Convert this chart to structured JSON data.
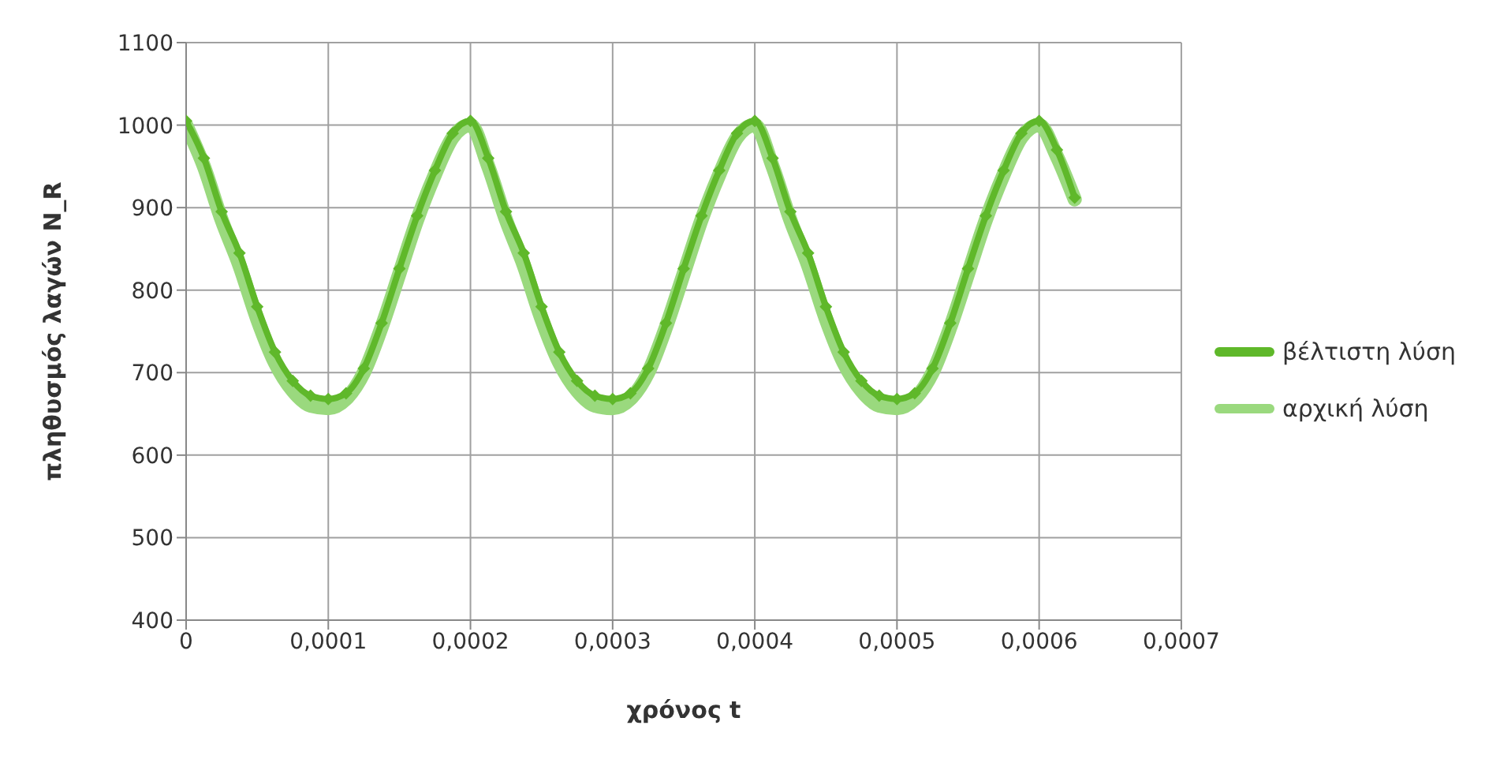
{
  "chart_data": {
    "type": "line",
    "xlabel": "χρόνος t",
    "ylabel": "πληθυσμός λαγών N_R",
    "x": [
      0,
      1.25e-05,
      2.5e-05,
      3.75e-05,
      5e-05,
      6.25e-05,
      7.5e-05,
      8.75e-05,
      0.0001,
      0.0001125,
      0.000125,
      0.0001375,
      0.00015,
      0.0001625,
      0.000175,
      0.0001875,
      0.0002,
      0.0002125,
      0.000225,
      0.0002375,
      0.00025,
      0.0002625,
      0.000275,
      0.0002875,
      0.0003,
      0.0003125,
      0.000325,
      0.0003375,
      0.00035,
      0.0003625,
      0.000375,
      0.0003875,
      0.0004,
      0.0004125,
      0.000425,
      0.0004375,
      0.00045,
      0.0004625,
      0.000475,
      0.0004875,
      0.0005,
      0.0005125,
      0.000525,
      0.0005375,
      0.00055,
      0.0005625,
      0.000575,
      0.0005875,
      0.0006,
      0.0006125,
      0.000625
    ],
    "series": [
      {
        "name": "βέλτιστη λύση",
        "color": "#5fb82a",
        "marker": "diamond",
        "values": [
          1005,
          960,
          895,
          845,
          780,
          725,
          690,
          672,
          668,
          675,
          705,
          760,
          826,
          890,
          945,
          990,
          1005,
          960,
          895,
          845,
          780,
          725,
          690,
          672,
          668,
          675,
          705,
          760,
          826,
          890,
          945,
          990,
          1005,
          960,
          895,
          845,
          780,
          725,
          690,
          672,
          668,
          675,
          705,
          760,
          826,
          890,
          945,
          990,
          1005,
          970,
          912
        ]
      },
      {
        "name": "αρχική λύση",
        "color": "#9ad97e",
        "marker": "none",
        "values": [
          1000,
          950,
          885,
          830,
          765,
          712,
          678,
          660,
          657,
          668,
          700,
          755,
          820,
          885,
          940,
          985,
          1000,
          950,
          885,
          830,
          765,
          712,
          678,
          660,
          657,
          668,
          700,
          755,
          820,
          885,
          940,
          985,
          1000,
          950,
          885,
          830,
          765,
          712,
          678,
          660,
          657,
          668,
          700,
          755,
          820,
          885,
          940,
          985,
          1000,
          962,
          910
        ]
      }
    ],
    "xlim": [
      0,
      0.0007
    ],
    "xticks": [
      0,
      {
        "value": 0.0001,
        "label": "0,0001"
      },
      {
        "value": 0.0002,
        "label": "0,0002"
      },
      {
        "value": 0.0003,
        "label": "0,0003"
      },
      {
        "value": 0.0004,
        "label": "0,0004"
      },
      {
        "value": 0.0005,
        "label": "0,0005"
      },
      {
        "value": 0.0006,
        "label": "0,0006"
      },
      {
        "value": 0.0007,
        "label": "0,0007"
      }
    ],
    "ylim": [
      400,
      1100
    ],
    "yticks": [
      400,
      500,
      600,
      700,
      800,
      900,
      1000,
      1100
    ],
    "grid": true,
    "legend": "right"
  }
}
